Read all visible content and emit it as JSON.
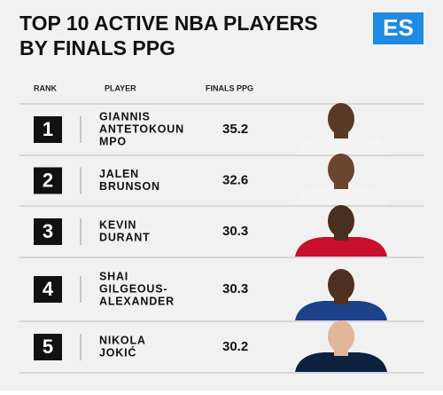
{
  "header": {
    "title_lines": [
      "TOP 10 ACTIVE NBA PLAYERS",
      "BY FINALS PPG"
    ],
    "logo": "ES"
  },
  "table": {
    "columns": [
      "RANK",
      "PLAYER",
      "FINALS PPG"
    ],
    "rows": [
      {
        "rank": 1,
        "name_lines": [
          "GIANNIS",
          "ANTETOKOUN",
          "MPO"
        ],
        "ppg": 35.2
      },
      {
        "rank": 2,
        "name_lines": [
          "JALEN",
          "BRUNSON"
        ],
        "ppg": 32.6
      },
      {
        "rank": 3,
        "name_lines": [
          "KEVIN",
          "DURANT"
        ],
        "ppg": 30.3
      },
      {
        "rank": 4,
        "name_lines": [
          "SHAI",
          "GILGEOUS-",
          "ALEXANDER"
        ],
        "ppg": 30.3
      },
      {
        "rank": 5,
        "name_lines": [
          "NIKOLA",
          "JOKIĆ"
        ],
        "ppg": 30.2
      }
    ]
  }
}
